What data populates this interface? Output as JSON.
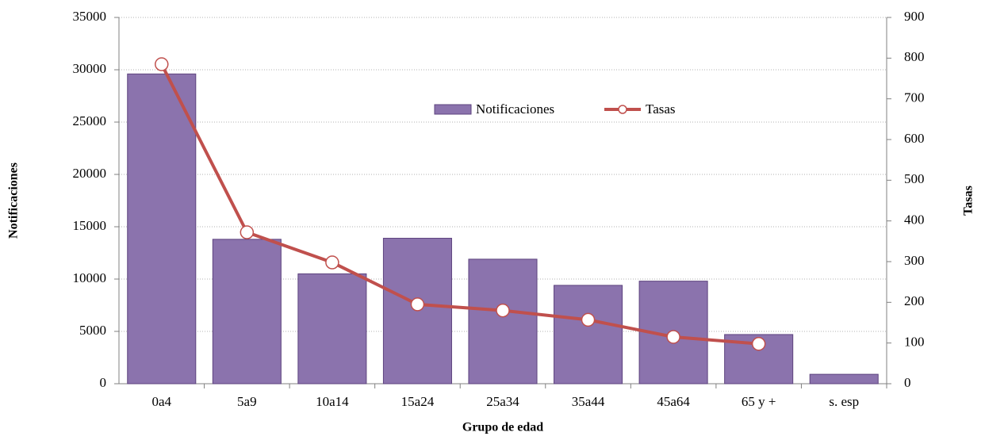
{
  "chart_data": {
    "type": "bar_line",
    "x_label": "Grupo de edad",
    "y_label": "Notificaciones",
    "y2_label": "Tasas",
    "categories": [
      "0a4",
      "5a9",
      "10a14",
      "15a24",
      "25a34",
      "35a44",
      "45a64",
      "65 y +",
      "s. esp"
    ],
    "series": [
      {
        "name": "Notificaciones",
        "type": "bar",
        "color": "#8b73ad",
        "values": [
          29600,
          13800,
          10500,
          13900,
          11900,
          9400,
          9800,
          4700,
          900
        ]
      },
      {
        "name": "Tasas",
        "type": "line",
        "axis": "y2",
        "color": "#c0504d",
        "values": [
          785,
          372,
          298,
          195,
          180,
          157,
          115,
          98,
          null
        ]
      }
    ],
    "ylim": [
      0,
      35000
    ],
    "yticks": [
      0,
      5000,
      10000,
      15000,
      20000,
      25000,
      30000,
      35000
    ],
    "y2lim": [
      0,
      900
    ],
    "y2ticks": [
      0,
      100,
      200,
      300,
      400,
      500,
      600,
      700,
      800,
      900
    ],
    "grid": true,
    "legend": "top-center"
  }
}
